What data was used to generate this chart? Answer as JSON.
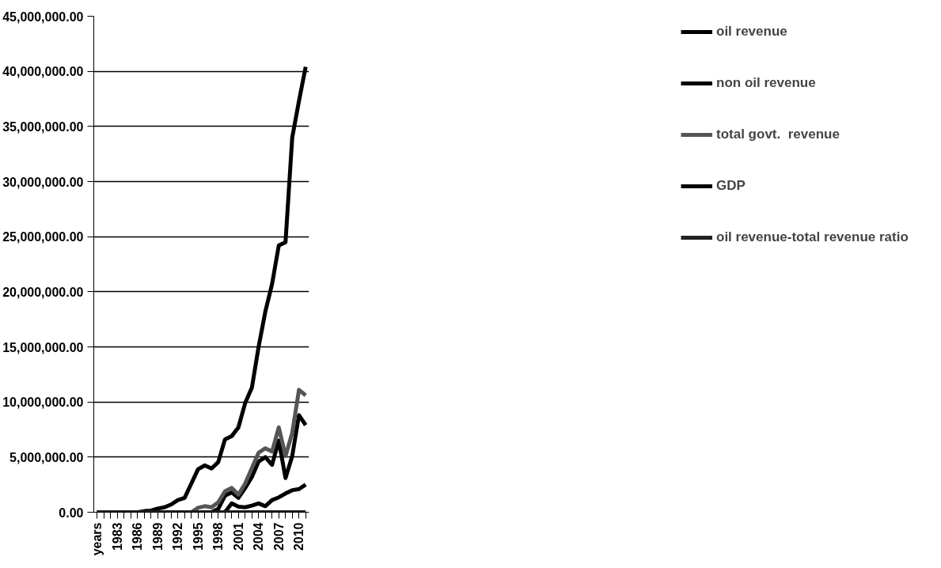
{
  "chart_data": {
    "type": "line",
    "categories": [
      "years",
      null,
      null,
      "1983",
      null,
      null,
      "1986",
      null,
      null,
      "1989",
      null,
      null,
      "1992",
      null,
      null,
      "1995",
      null,
      null,
      "1998",
      null,
      null,
      "2001",
      null,
      null,
      "2004",
      null,
      null,
      "2007",
      null,
      null,
      "2010",
      null
    ],
    "series": [
      {
        "name": "oil revenue",
        "color": "#000000",
        "values": [
          0,
          0,
          0,
          0,
          0,
          0,
          0,
          0,
          0,
          0,
          0,
          0,
          0,
          0,
          0,
          0,
          0,
          0,
          300000,
          1500000,
          1800000,
          1300000,
          2200000,
          3200000,
          4600000,
          5000000,
          4300000,
          6500000,
          3100000,
          5100000,
          8800000,
          7900000
        ]
      },
      {
        "name": "non oil revenue",
        "color": "#000000",
        "values": [
          0,
          0,
          0,
          0,
          0,
          0,
          0,
          0,
          0,
          0,
          0,
          0,
          0,
          0,
          0,
          0,
          0,
          0,
          0,
          0,
          800000,
          500000,
          450000,
          600000,
          800000,
          550000,
          1100000,
          1350000,
          1700000,
          2000000,
          2100000,
          2500000
        ]
      },
      {
        "name": "total govt.  revenue",
        "color": "#555555",
        "values": [
          0,
          0,
          0,
          0,
          0,
          0,
          0,
          0,
          0,
          0,
          0,
          0,
          0,
          0,
          0,
          400000,
          550000,
          450000,
          900000,
          1900000,
          2200000,
          1600000,
          2600000,
          4000000,
          5400000,
          5800000,
          5500000,
          7700000,
          5100000,
          7200000,
          11100000,
          10600000
        ]
      },
      {
        "name": "GDP",
        "color": "#000000",
        "values": [
          0,
          0,
          0,
          0,
          0,
          0,
          0,
          100000,
          150000,
          330000,
          450000,
          700000,
          1100000,
          1300000,
          2600000,
          3900000,
          4250000,
          3960000,
          4550000,
          6600000,
          6900000,
          7700000,
          9900000,
          11300000,
          15000000,
          18200000,
          20700000,
          24200000,
          24500000,
          34000000,
          37300000,
          40400000
        ]
      },
      {
        "name": "oil revenue-total revenue ratio",
        "color": "#222222",
        "values": [
          0,
          0,
          0,
          0,
          0,
          0,
          0,
          0,
          0,
          0,
          0,
          0,
          0,
          0,
          0,
          0,
          0,
          0,
          0,
          0,
          0,
          0,
          0,
          0,
          0,
          0,
          0,
          0,
          0,
          0,
          0,
          0
        ]
      }
    ],
    "ylim": [
      0,
      45000000
    ],
    "yticks": [
      {
        "value": 0,
        "label": "0.00"
      },
      {
        "value": 5000000,
        "label": "5,000,000.00"
      },
      {
        "value": 10000000,
        "label": "10,000,000.00"
      },
      {
        "value": 15000000,
        "label": "15,000,000.00"
      },
      {
        "value": 20000000,
        "label": "20,000,000.00"
      },
      {
        "value": 25000000,
        "label": "25,000,000.00"
      },
      {
        "value": 30000000,
        "label": "30,000,000.00"
      },
      {
        "value": 35000000,
        "label": "35,000,000.00"
      },
      {
        "value": 40000000,
        "label": "40,000,000.00"
      },
      {
        "value": 45000000,
        "label": "45,000,000.00"
      }
    ],
    "grid": "y",
    "legend": "right",
    "line_style": "solid"
  }
}
